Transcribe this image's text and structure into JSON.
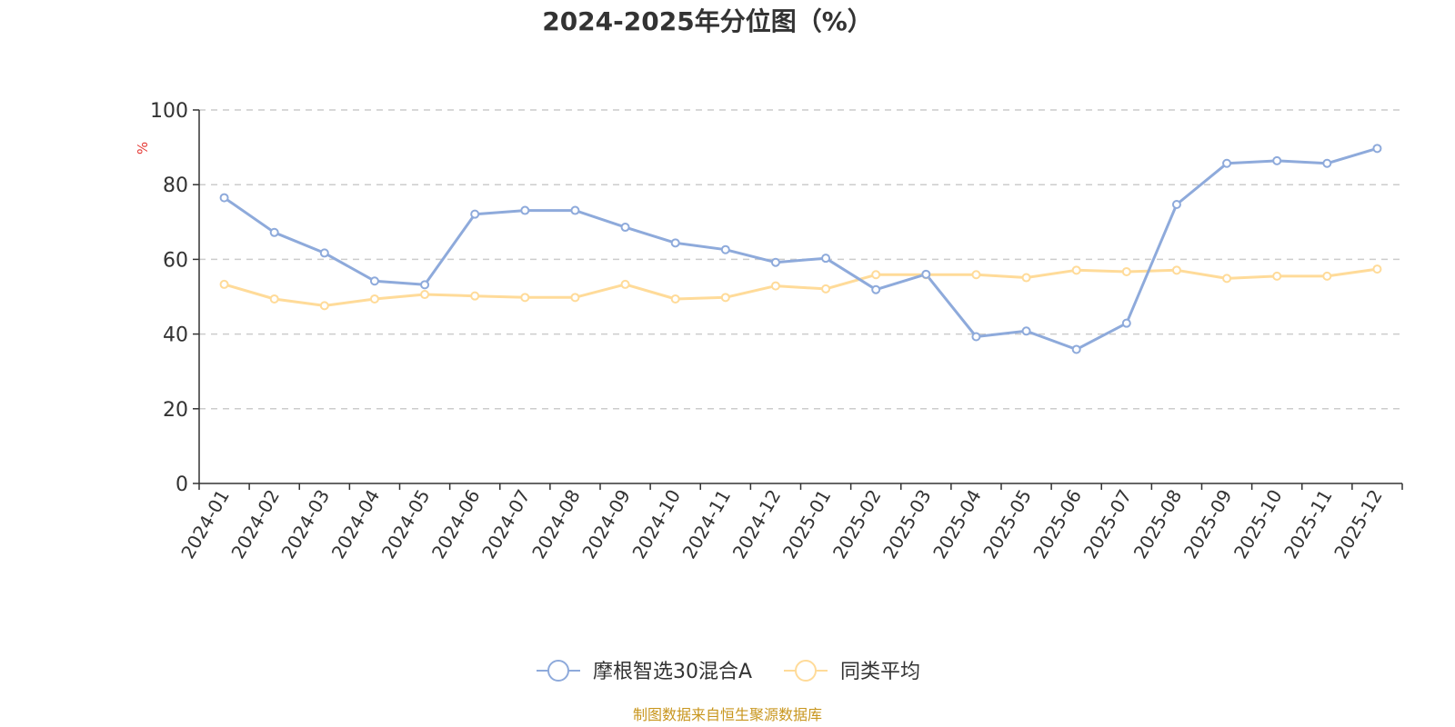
{
  "chart_data": {
    "type": "line",
    "title": "2024-2025年分位图（%）",
    "ylabel": "%",
    "ylim": [
      0,
      100
    ],
    "yticks": [
      0,
      20,
      40,
      60,
      80,
      100
    ],
    "grid": "horizontal-dashed",
    "legend_position": "bottom-center",
    "categories": [
      "2024-01",
      "2024-02",
      "2024-03",
      "2024-04",
      "2024-05",
      "2024-06",
      "2024-07",
      "2024-08",
      "2024-09",
      "2024-10",
      "2024-11",
      "2024-12",
      "2025-01",
      "2025-02",
      "2025-03",
      "2025-04",
      "2025-05",
      "2025-06",
      "2025-07",
      "2025-08",
      "2025-09",
      "2025-10",
      "2025-11",
      "2025-12"
    ],
    "series": [
      {
        "name": "摩根智选30混合A",
        "color": "#8eaadb",
        "values": [
          76.5,
          67.2,
          61.7,
          54.2,
          53.2,
          72.1,
          73.1,
          73.1,
          68.6,
          64.4,
          62.6,
          59.2,
          60.3,
          51.9,
          56.0,
          39.3,
          40.8,
          35.9,
          42.9,
          74.7,
          85.7,
          86.4,
          85.7,
          89.7
        ]
      },
      {
        "name": "同类平均",
        "color": "#ffdb99",
        "values": [
          53.3,
          49.4,
          47.6,
          49.4,
          50.6,
          50.2,
          49.8,
          49.8,
          53.3,
          49.4,
          49.8,
          52.9,
          52.1,
          55.9,
          55.9,
          55.9,
          55.1,
          57.1,
          56.7,
          57.1,
          54.9,
          55.5,
          55.5,
          57.4
        ]
      }
    ],
    "source": "制图数据来自恒生聚源数据库"
  }
}
